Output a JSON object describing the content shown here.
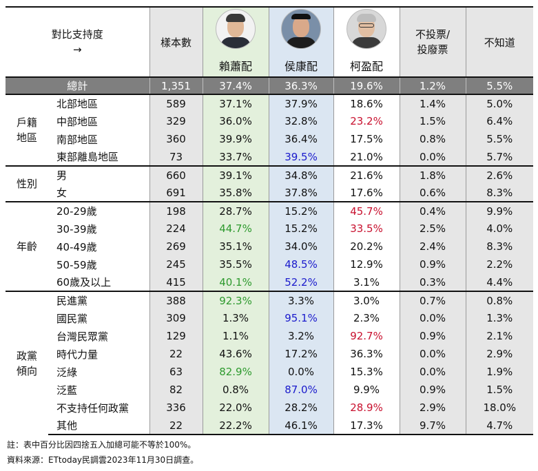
{
  "chart_data": {
    "type": "table",
    "header": {
      "title_line1": "對比支持度",
      "title_line2": "→",
      "sample": "樣本數",
      "candidates": [
        "賴蕭配",
        "侯康配",
        "柯盈配"
      ],
      "no_vote_line1": "不投票/",
      "no_vote_line2": "投廢票",
      "dont_know": "不知道"
    },
    "total": {
      "label": "總計",
      "n": "1,351",
      "values": [
        "37.4%",
        "36.3%",
        "19.6%",
        "1.2%",
        "5.5%"
      ]
    },
    "groups": [
      {
        "name_line1": "戶籍",
        "name_line2": "地區",
        "rows": [
          {
            "label": "北部地區",
            "n": "589",
            "values": [
              "37.1%",
              "37.9%",
              "18.6%",
              "1.4%",
              "5.0%"
            ]
          },
          {
            "label": "中部地區",
            "n": "329",
            "values": [
              "36.0%",
              "32.8%",
              "23.2%",
              "1.5%",
              "6.4%"
            ]
          },
          {
            "label": "南部地區",
            "n": "360",
            "values": [
              "39.9%",
              "36.4%",
              "17.5%",
              "0.8%",
              "5.5%"
            ]
          },
          {
            "label": "東部離島地區",
            "n": "73",
            "values": [
              "33.7%",
              "39.5%",
              "21.0%",
              "0.0%",
              "5.7%"
            ]
          }
        ]
      },
      {
        "name_line1": "性別",
        "name_line2": "",
        "rows": [
          {
            "label": "男",
            "n": "660",
            "values": [
              "39.1%",
              "34.8%",
              "21.6%",
              "1.8%",
              "2.6%"
            ]
          },
          {
            "label": "女",
            "n": "691",
            "values": [
              "35.8%",
              "37.8%",
              "17.6%",
              "0.6%",
              "8.3%"
            ]
          }
        ]
      },
      {
        "name_line1": "年齡",
        "name_line2": "",
        "rows": [
          {
            "label": "20-29歲",
            "n": "198",
            "values": [
              "28.7%",
              "15.2%",
              "45.7%",
              "0.4%",
              "9.9%"
            ]
          },
          {
            "label": "30-39歲",
            "n": "224",
            "values": [
              "44.7%",
              "15.2%",
              "33.5%",
              "2.5%",
              "4.0%"
            ]
          },
          {
            "label": "40-49歲",
            "n": "269",
            "values": [
              "35.1%",
              "34.0%",
              "20.2%",
              "2.4%",
              "8.3%"
            ]
          },
          {
            "label": "50-59歲",
            "n": "245",
            "values": [
              "35.5%",
              "48.5%",
              "12.9%",
              "0.9%",
              "2.2%"
            ]
          },
          {
            "label": "60歲及以上",
            "n": "415",
            "values": [
              "40.1%",
              "52.2%",
              "3.1%",
              "0.3%",
              "4.4%"
            ]
          }
        ]
      },
      {
        "name_line1": "政黨",
        "name_line2": "傾向",
        "rows": [
          {
            "label": "民進黨",
            "n": "388",
            "values": [
              "92.3%",
              "3.3%",
              "3.0%",
              "0.7%",
              "0.8%"
            ]
          },
          {
            "label": "國民黨",
            "n": "309",
            "values": [
              "1.3%",
              "95.1%",
              "2.3%",
              "0.0%",
              "1.3%"
            ]
          },
          {
            "label": "台灣民眾黨",
            "n": "129",
            "values": [
              "1.1%",
              "3.2%",
              "92.7%",
              "0.9%",
              "2.1%"
            ]
          },
          {
            "label": "時代力量",
            "n": "22",
            "values": [
              "43.6%",
              "17.2%",
              "36.3%",
              "0.0%",
              "2.9%"
            ]
          },
          {
            "label": "泛綠",
            "n": "63",
            "values": [
              "82.9%",
              "0.0%",
              "15.3%",
              "0.0%",
              "1.9%"
            ]
          },
          {
            "label": "泛藍",
            "n": "82",
            "values": [
              "0.8%",
              "87.0%",
              "9.9%",
              "0.9%",
              "1.5%"
            ]
          },
          {
            "label": "不支持任何政黨",
            "n": "336",
            "values": [
              "22.0%",
              "28.2%",
              "28.9%",
              "2.9%",
              "18.0%"
            ]
          },
          {
            "label": "其他",
            "n": "22",
            "values": [
              "22.2%",
              "46.1%",
              "17.3%",
              "9.7%",
              "4.7%"
            ]
          }
        ]
      }
    ],
    "highlight_colors": {
      "green": "#2e9a2e",
      "blue": "#1a1acc",
      "red": "#c8102e"
    },
    "highlights": [
      [
        0,
        1,
        2,
        "red"
      ],
      [
        0,
        3,
        1,
        "blue"
      ],
      [
        2,
        1,
        0,
        "green"
      ],
      [
        2,
        0,
        2,
        "red"
      ],
      [
        2,
        1,
        2,
        "red"
      ],
      [
        2,
        3,
        1,
        "blue"
      ],
      [
        2,
        4,
        0,
        "green"
      ],
      [
        2,
        4,
        1,
        "blue"
      ],
      [
        3,
        0,
        0,
        "green"
      ],
      [
        3,
        1,
        1,
        "blue"
      ],
      [
        3,
        2,
        2,
        "red"
      ],
      [
        3,
        4,
        0,
        "green"
      ],
      [
        3,
        5,
        1,
        "blue"
      ],
      [
        3,
        6,
        2,
        "red"
      ]
    ]
  },
  "footnotes": {
    "note": "註：表中百分比因四捨五入加總可能不等於100%。",
    "source": "資料來源：ETtoday民調雲2023年11月30日調查。"
  },
  "avatars": [
    "candidate-lai-avatar-icon",
    "candidate-hou-avatar-icon",
    "candidate-ko-avatar-icon"
  ]
}
